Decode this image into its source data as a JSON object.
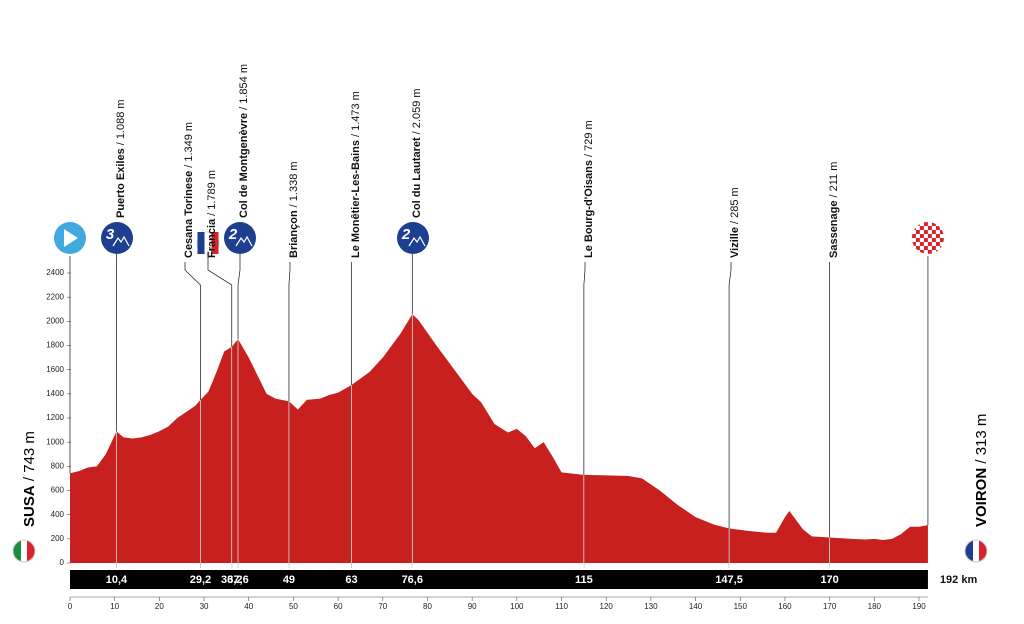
{
  "chart_data": {
    "type": "area",
    "color": "#c8201e",
    "x": [
      0,
      2,
      4,
      6,
      8,
      10.4,
      12,
      14,
      16,
      18,
      20,
      22,
      24,
      26,
      28,
      29.2,
      31,
      33,
      34.5,
      36.2,
      37.6,
      40,
      42,
      44,
      46,
      49,
      51,
      53,
      56,
      58,
      60,
      63,
      67,
      70,
      74,
      76.6,
      78,
      82,
      86,
      90,
      92,
      95,
      98,
      100,
      102,
      104,
      106,
      108,
      110,
      115,
      120,
      125,
      128,
      132,
      136,
      140,
      144,
      147.5,
      152,
      156,
      158,
      160,
      161,
      162,
      164,
      166,
      170,
      175,
      178,
      180,
      182,
      184,
      186,
      188,
      190,
      192
    ],
    "values": [
      743,
      760,
      790,
      800,
      900,
      1088,
      1040,
      1030,
      1040,
      1060,
      1090,
      1130,
      1200,
      1250,
      1300,
      1349,
      1420,
      1600,
      1750,
      1789,
      1854,
      1700,
      1550,
      1400,
      1360,
      1338,
      1270,
      1350,
      1360,
      1390,
      1410,
      1473,
      1580,
      1700,
      1900,
      2059,
      2010,
      1800,
      1600,
      1400,
      1330,
      1150,
      1080,
      1110,
      1050,
      950,
      1000,
      880,
      750,
      729,
      725,
      720,
      700,
      600,
      480,
      380,
      320,
      285,
      265,
      250,
      250,
      380,
      430,
      380,
      280,
      220,
      211,
      200,
      195,
      200,
      190,
      200,
      240,
      300,
      300,
      313
    ],
    "xlim": [
      0,
      192
    ],
    "ylim": [
      0,
      2400
    ],
    "xticks": [
      0,
      10,
      20,
      30,
      40,
      50,
      60,
      70,
      80,
      90,
      100,
      110,
      120,
      130,
      140,
      150,
      160,
      170,
      180,
      190
    ],
    "yticks": [
      0,
      200,
      400,
      600,
      800,
      1000,
      1200,
      1400,
      1600,
      1800,
      2000,
      2200,
      2400
    ],
    "start": {
      "name": "SUSA",
      "elevation_label": "/ 743 m",
      "elevation": 743
    },
    "finish": {
      "name": "VOIRON",
      "elevation_label": "/ 313 m",
      "elevation": 313,
      "km": 192,
      "km_label": "192 km"
    },
    "waypoints": [
      {
        "name": "Puerto Exiles",
        "elevation_label": "/ 1.088 m",
        "elevation": 1088,
        "km": 10.4,
        "km_label": "10,4",
        "category": "3"
      },
      {
        "name": "Cesana Torinese",
        "elevation_label": "/ 1.349 m",
        "elevation": 1349,
        "km": 29.2,
        "km_label": "29,2"
      },
      {
        "name": "Francia",
        "elevation_label": "/ 1.789 m",
        "elevation": 1789,
        "km": 36.2,
        "km_label": "36,2"
      },
      {
        "name": "Col de Montgenèvre",
        "elevation_label": "/ 1.854 m",
        "elevation": 1854,
        "km": 37.6,
        "km_label": "37,6",
        "category": "2"
      },
      {
        "name": "Briançon",
        "elevation_label": "/ 1.338 m",
        "elevation": 1338,
        "km": 49,
        "km_label": "49"
      },
      {
        "name": "Le Monêtier-Les-Bains",
        "elevation_label": "/ 1.473 m",
        "elevation": 1473,
        "km": 63,
        "km_label": "63"
      },
      {
        "name": "Col du Lautaret",
        "elevation_label": "/ 2.059 m",
        "elevation": 2059,
        "km": 76.6,
        "km_label": "76,6",
        "category": "2"
      },
      {
        "name": "Le Bourg-d'Oisans",
        "elevation_label": "/ 729 m",
        "elevation": 729,
        "km": 115,
        "km_label": "115"
      },
      {
        "name": "Vizille",
        "elevation_label": "/ 285 m",
        "elevation": 285,
        "km": 147.5,
        "km_label": "147,5"
      },
      {
        "name": "Sassenage",
        "elevation_label": "/ 211 m",
        "elevation": 211,
        "km": 170,
        "km_label": "170"
      }
    ]
  }
}
